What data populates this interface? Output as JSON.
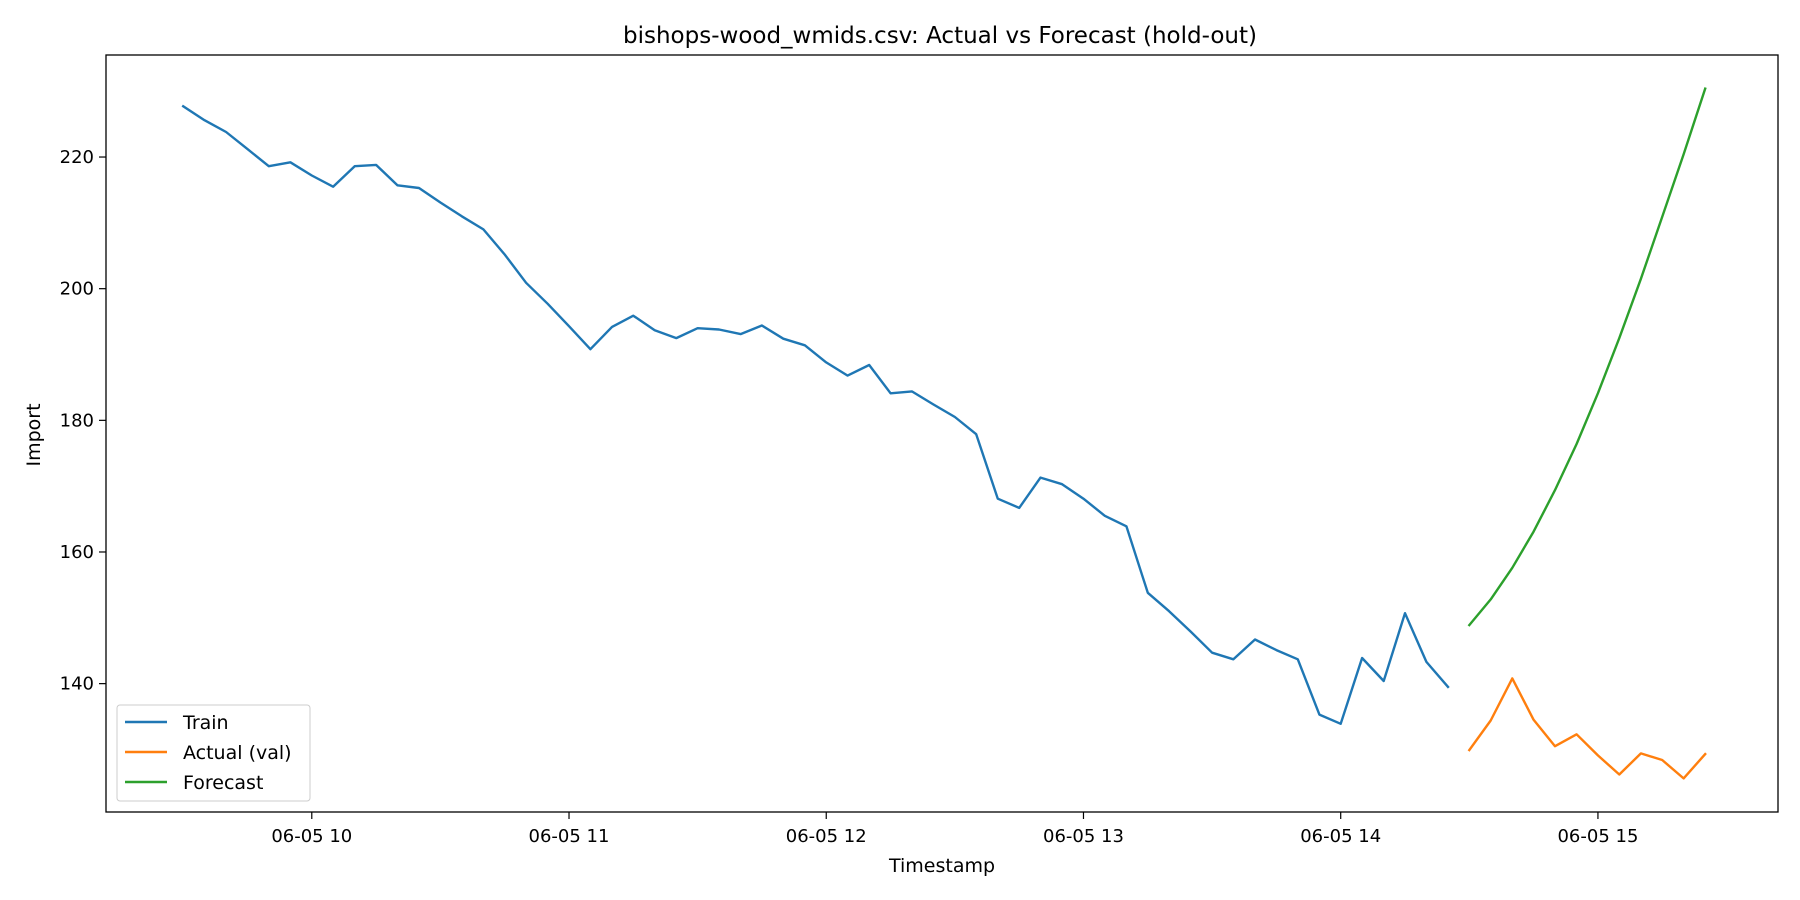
{
  "chart_data": {
    "type": "line",
    "title": "bishops-wood_wmids.csv: Actual vs Forecast (hold-out)",
    "xlabel": "Timestamp",
    "ylabel": "Import",
    "x_unit": "hours",
    "xlim": [
      9.2,
      15.7
    ],
    "ylim": [
      120.5,
      235.5
    ],
    "x_ticks": [
      {
        "value": 10,
        "label": "06-05 10"
      },
      {
        "value": 11,
        "label": "06-05 11"
      },
      {
        "value": 12,
        "label": "06-05 12"
      },
      {
        "value": 13,
        "label": "06-05 13"
      },
      {
        "value": 14,
        "label": "06-05 14"
      },
      {
        "value": 15,
        "label": "06-05 15"
      }
    ],
    "y_ticks": [
      140,
      160,
      180,
      200,
      220
    ],
    "grid": false,
    "legend_position": "lower-left",
    "series": [
      {
        "name": "Train",
        "color": "#1f77b4",
        "x": [
          9.5,
          9.583,
          9.667,
          9.75,
          9.833,
          9.917,
          10.0,
          10.083,
          10.167,
          10.25,
          10.333,
          10.417,
          10.5,
          10.583,
          10.667,
          10.75,
          10.833,
          10.917,
          11.0,
          11.083,
          11.167,
          11.25,
          11.333,
          11.417,
          11.5,
          11.583,
          11.667,
          11.75,
          11.833,
          11.917,
          12.0,
          12.083,
          12.167,
          12.25,
          12.333,
          12.417,
          12.5,
          12.583,
          12.667,
          12.75,
          12.833,
          12.917,
          13.0,
          13.083,
          13.167,
          13.25,
          13.333,
          13.417,
          13.5,
          13.583,
          13.667,
          13.75,
          13.833,
          13.917,
          14.0,
          14.083,
          14.167,
          14.25,
          14.333,
          14.417
        ],
        "values": [
          227.7,
          225.6,
          223.8,
          221.2,
          218.6,
          219.2,
          217.2,
          215.5,
          218.6,
          218.8,
          215.7,
          215.3,
          213.1,
          211.0,
          209.0,
          205.2,
          200.9,
          197.7,
          194.3,
          190.8,
          194.2,
          195.9,
          193.7,
          192.5,
          194.0,
          193.8,
          193.1,
          194.4,
          192.4,
          191.4,
          188.8,
          186.8,
          188.4,
          184.1,
          184.4,
          182.4,
          180.5,
          177.9,
          168.1,
          166.7,
          171.3,
          170.3,
          168.1,
          165.5,
          163.9,
          153.8,
          151.0,
          147.9,
          144.7,
          143.7,
          146.7,
          145.1,
          143.7,
          135.3,
          133.9,
          143.9,
          140.4,
          150.7,
          143.3,
          139.5
        ]
      },
      {
        "name": "Actual (val)",
        "color": "#ff7f0e",
        "x": [
          14.5,
          14.583,
          14.667,
          14.75,
          14.833,
          14.917,
          15.0,
          15.083,
          15.167,
          15.25,
          15.333,
          15.417
        ],
        "values": [
          129.9,
          134.4,
          140.8,
          134.5,
          130.5,
          132.3,
          129.1,
          126.2,
          129.4,
          128.4,
          125.6,
          129.3
        ]
      },
      {
        "name": "Forecast",
        "color": "#2ca02c",
        "x": [
          14.5,
          14.583,
          14.667,
          14.75,
          14.833,
          14.917,
          15.0,
          15.083,
          15.167,
          15.25,
          15.333,
          15.417
        ],
        "values": [
          148.9,
          152.8,
          157.6,
          163.1,
          169.4,
          176.4,
          184.1,
          192.5,
          201.5,
          210.9,
          220.4,
          230.4
        ]
      }
    ]
  }
}
